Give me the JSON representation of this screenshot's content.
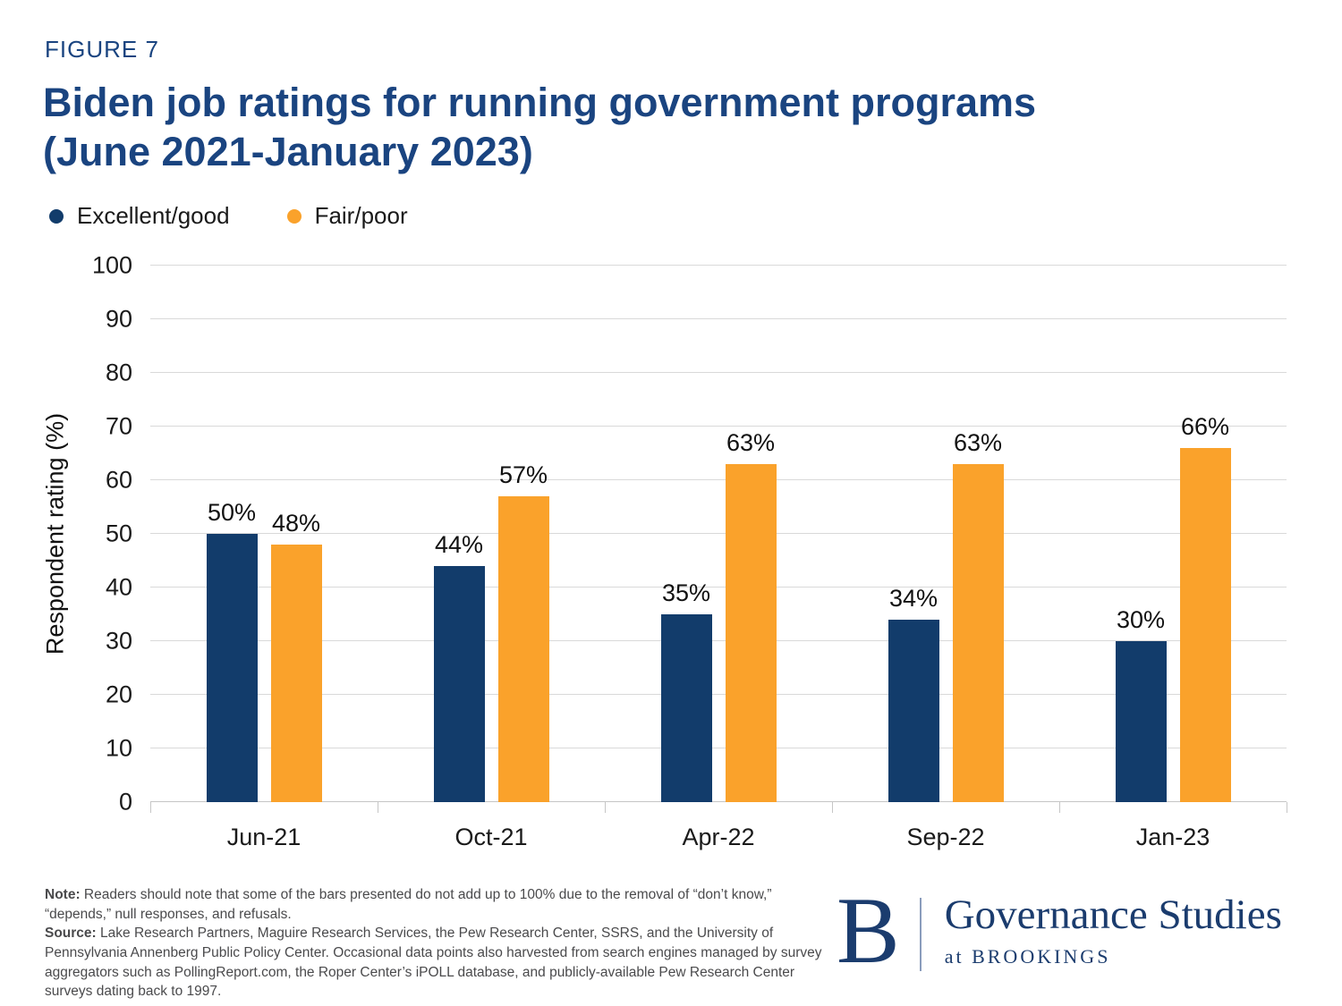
{
  "header": {
    "figure_label": "FIGURE 7",
    "title": "Biden job ratings for running government programs\n(June 2021-January 2023)"
  },
  "legend": {
    "items": [
      {
        "label": "Excellent/good",
        "color": "#123C6B"
      },
      {
        "label": "Fair/poor",
        "color": "#FAA22B"
      }
    ]
  },
  "chart_data": {
    "type": "bar",
    "title": "Biden job ratings for running government programs (June 2021-January 2023)",
    "categories": [
      "Jun-21",
      "Oct-21",
      "Apr-22",
      "Sep-22",
      "Jan-23"
    ],
    "series": [
      {
        "name": "Excellent/good",
        "color": "#123C6B",
        "values": [
          50,
          44,
          35,
          34,
          30
        ]
      },
      {
        "name": "Fair/poor",
        "color": "#FAA22B",
        "values": [
          48,
          57,
          63,
          63,
          66
        ]
      }
    ],
    "value_label_suffix": "%",
    "xlabel": "",
    "ylabel": "Respondent rating (%)",
    "ylim": [
      0,
      100
    ],
    "ytick_step": 10,
    "grid": true,
    "legend_position": "top-left"
  },
  "footer": {
    "note_label": "Note:",
    "note_text": " Readers should note that some of the bars presented do not add up to 100% due to the removal of “don’t know,” “depends,” null responses, and refusals.",
    "source_label": "Source:",
    "source_text": " Lake Research Partners, Maguire Research Services, the Pew Research Center, SSRS, and the University of Pennsylvania Annenberg Public Policy Center. Occasional data points also harvested from search engines managed by survey aggregators such as PollingReport.com, the Roper Center’s iPOLL database, and publicly-available Pew Research Center surveys dating back to 1997.",
    "logo": {
      "monogram": "B",
      "title": "Governance Studies",
      "subtitle": "at BROOKINGS",
      "color": "#1B3C6E"
    }
  },
  "colors": {
    "title_navy": "#1A4480",
    "bar_navy": "#123C6B",
    "bar_orange": "#FAA22B",
    "gridline": "#D9D9D9",
    "axis": "#C6C6C6",
    "note_text": "#4A4A4C",
    "logo_navy": "#1B3C6E",
    "background": "#FFFFFF"
  }
}
